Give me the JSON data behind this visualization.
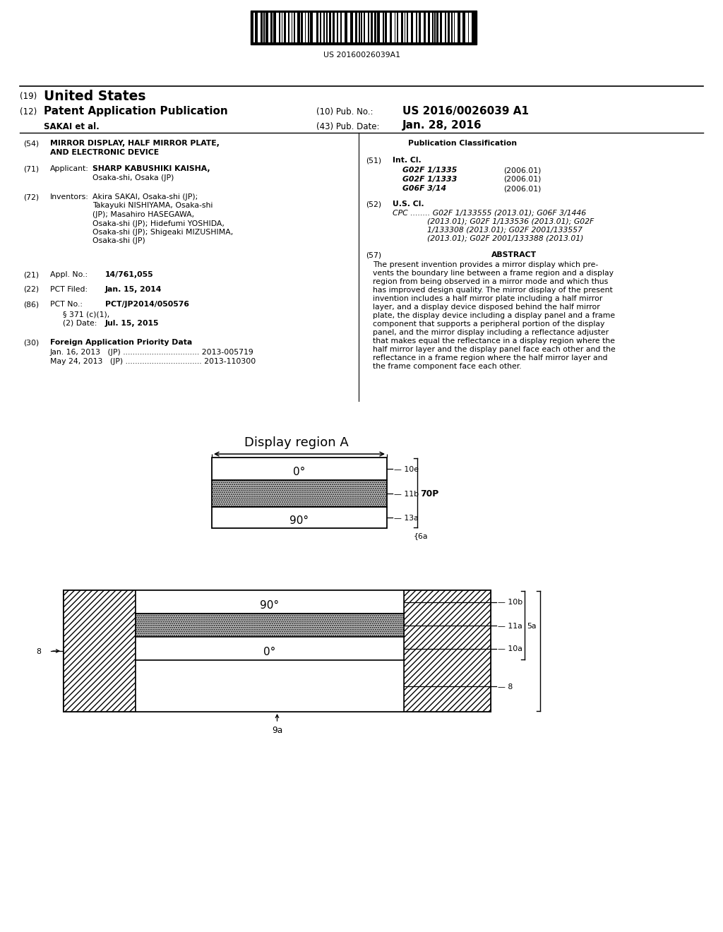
{
  "title": "MIRROR DISPLAY, HALF MIRROR PLATE, AND ELECTRONIC DEVICE",
  "barcode_text": "US 20160026039A1",
  "country": "United States",
  "pub_type": "Patent Application Publication",
  "pub_no_label": "(10) Pub. No.:",
  "pub_no": "US 2016/0026039 A1",
  "pub_date_label": "(43) Pub. Date:",
  "pub_date": "Jan. 28, 2016",
  "assignee_label": "SAKAI et al.",
  "section54_title1": "MIRROR DISPLAY, HALF MIRROR PLATE,",
  "section54_title2": "AND ELECTRONIC DEVICE",
  "section71_name": "SHARP KABUSHIKI KAISHA,",
  "section71_addr": "Osaka-shi, Osaka (JP)",
  "inv_lines": [
    "Akira SAKAI, Osaka-shi (JP);",
    "Takayuki NISHIYAMA, Osaka-shi",
    "(JP); Masahiro HASEGAWA,",
    "Osaka-shi (JP); Hidefumi YOSHIDA,",
    "Osaka-shi (JP); Shigeaki MIZUSHIMA,",
    "Osaka-shi (JP)"
  ],
  "section21_val": "14/761,055",
  "section22_val": "Jan. 15, 2014",
  "section86_val": "PCT/JP2014/050576",
  "section86b": "§ 371 (c)(1),",
  "section86c_val": "Jul. 15, 2015",
  "section30_row1": "Jan. 16, 2013   (JP) ................................ 2013-005719",
  "section30_row2": "May 24, 2013   (JP) ................................ 2013-110300",
  "section51_rows": [
    [
      "G02F 1/1335",
      "(2006.01)"
    ],
    [
      "G02F 1/1333",
      "(2006.01)"
    ],
    [
      "G06F 3/14",
      "(2006.01)"
    ]
  ],
  "cpc_lines": [
    "CPC ........ G02F 1/133555 (2013.01); G06F 3/1446",
    "              (2013.01); G02F 1/133536 (2013.01); G02F",
    "              1/133308 (2013.01); G02F 2001/133557",
    "              (2013.01); G02F 2001/133388 (2013.01)"
  ],
  "abstract_lines": [
    "The present invention provides a mirror display which pre-",
    "vents the boundary line between a frame region and a display",
    "region from being observed in a mirror mode and which thus",
    "has improved design quality. The mirror display of the present",
    "invention includes a half mirror plate including a half mirror",
    "layer, and a display device disposed behind the half mirror",
    "plate, the display device including a display panel and a frame",
    "component that supports a peripheral portion of the display",
    "panel, and the mirror display including a reflectance adjuster",
    "that makes equal the reflectance in a display region where the",
    "half mirror layer and the display panel face each other and the",
    "reflectance in a frame region where the half mirror layer and",
    "the frame component face each other."
  ],
  "diag_title": "Display region A",
  "bg_color": "#ffffff",
  "line_color": "#000000"
}
